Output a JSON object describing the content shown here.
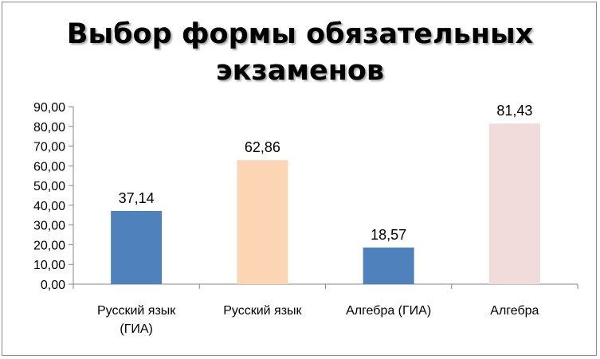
{
  "chart_data": {
    "type": "bar",
    "title_lines": [
      "Выбор формы обязательных",
      "экзаменов"
    ],
    "categories": [
      [
        "Русский язык",
        "(ГИА)"
      ],
      [
        "Русский язык"
      ],
      [
        "Алгебра (ГИА)"
      ],
      [
        "Алгебра"
      ]
    ],
    "values": [
      37.14,
      62.86,
      18.57,
      81.43
    ],
    "value_labels": [
      "37,14",
      "62,86",
      "18,57",
      "81,43"
    ],
    "bar_colors": [
      "#4f81bd",
      "#fcd5b5",
      "#4f81bd",
      "#f2dcdb"
    ],
    "ylim": [
      0,
      90
    ],
    "y_ticks": [
      0,
      10,
      20,
      30,
      40,
      50,
      60,
      70,
      80,
      90
    ],
    "y_tick_labels": [
      "0,00",
      "10,00",
      "20,00",
      "30,00",
      "40,00",
      "50,00",
      "60,00",
      "70,00",
      "80,00",
      "90,00"
    ],
    "grid": false,
    "legend": "none"
  }
}
